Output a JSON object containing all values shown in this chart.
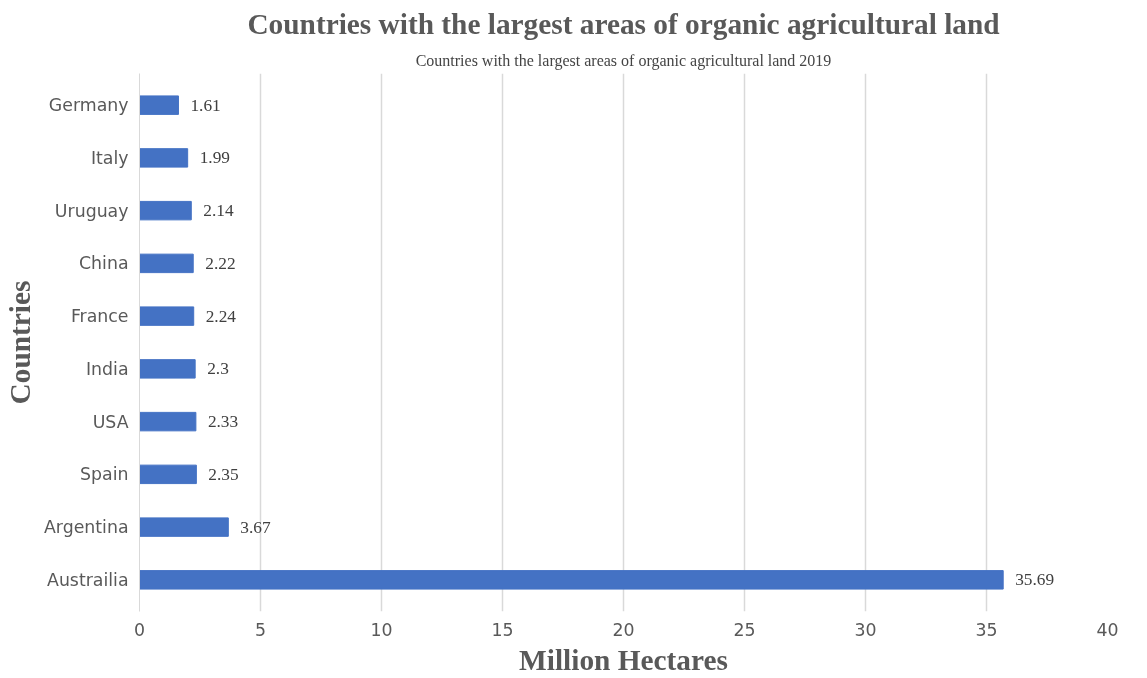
{
  "chart_data": {
    "type": "bar",
    "orientation": "horizontal",
    "title": "Countries with the largest areas of organic agricultural land",
    "annotations": [
      "Countries with the largest areas of organic agricultural land 2019"
    ],
    "xlabel": "Million Hectares",
    "ylabel": "Countries",
    "categories": [
      "Germany",
      "Italy",
      "Uruguay",
      "China",
      "France",
      "India",
      "USA",
      "Spain",
      "Argentina",
      "Austrailia"
    ],
    "values": [
      1.61,
      1.99,
      2.14,
      2.22,
      2.24,
      2.3,
      2.33,
      2.35,
      3.67,
      35.69
    ],
    "color": "#4472c4",
    "data_labels": true,
    "xlim": [
      0,
      40
    ],
    "xticks": [
      0,
      5,
      10,
      15,
      20,
      25,
      30,
      35,
      40
    ],
    "grid": "x"
  }
}
